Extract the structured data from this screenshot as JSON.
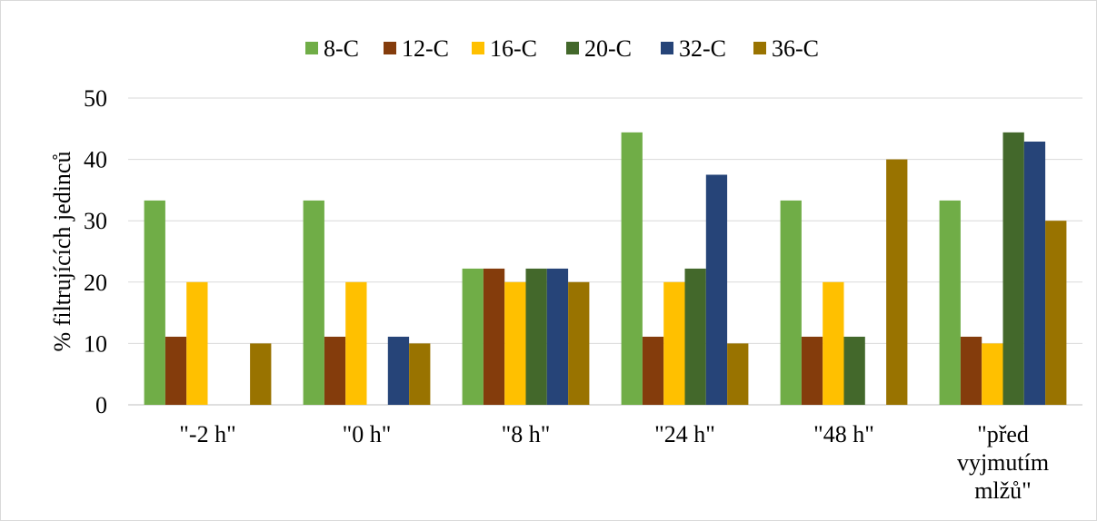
{
  "chart_data": {
    "type": "bar",
    "title": "",
    "xlabel": "",
    "ylabel": "% filtrujících jedinců",
    "ylim": [
      0,
      50
    ],
    "yticks": [
      0,
      10,
      20,
      30,
      40,
      50
    ],
    "grid": true,
    "legend_position": "top",
    "categories": [
      "\"-2 h\"",
      "\"0 h\"",
      "\"8 h\"",
      "\"24 h\"",
      "\"48 h\"",
      "\"před vyjmutím mlžů\""
    ],
    "category_lines": [
      [
        "\"-2 h\""
      ],
      [
        "\"0 h\""
      ],
      [
        "\"8 h\""
      ],
      [
        "\"24 h\""
      ],
      [
        "\"48 h\""
      ],
      [
        "\"před",
        "vyjmutím",
        "mlžů\""
      ]
    ],
    "series": [
      {
        "name": "8-C",
        "color": "#70ad47",
        "values": [
          33.3,
          33.3,
          22.2,
          44.4,
          33.3,
          33.3
        ]
      },
      {
        "name": "12-C",
        "color": "#843c0c",
        "values": [
          11.1,
          11.1,
          22.2,
          11.1,
          11.1,
          11.1
        ]
      },
      {
        "name": "16-C",
        "color": "#ffc000",
        "values": [
          20,
          20,
          20,
          20,
          20,
          10
        ]
      },
      {
        "name": "20-C",
        "color": "#43682b",
        "values": [
          0,
          0,
          22.2,
          22.2,
          11.1,
          44.4
        ]
      },
      {
        "name": "32-C",
        "color": "#264478",
        "values": [
          0,
          11.1,
          22.2,
          37.5,
          0,
          42.9
        ]
      },
      {
        "name": "36-C",
        "color": "#997300",
        "values": [
          10,
          10,
          20,
          10,
          40,
          30
        ]
      }
    ]
  }
}
